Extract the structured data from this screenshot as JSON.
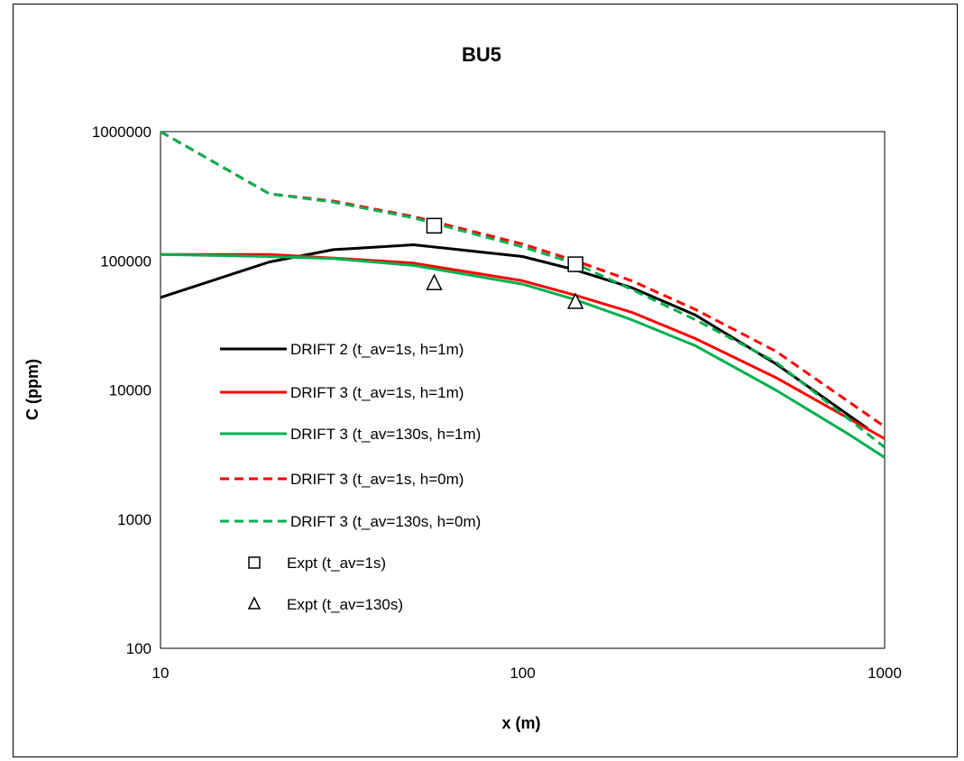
{
  "chart_data": {
    "type": "line",
    "title": "BU5",
    "xlabel": "x (m)",
    "ylabel": "C (ppm)",
    "x_scale": "log",
    "y_scale": "log",
    "xlim": [
      10,
      1000
    ],
    "ylim": [
      100,
      1000000
    ],
    "x_ticks": [
      "10",
      "100",
      "1000"
    ],
    "y_ticks": [
      "100",
      "1000",
      "10000",
      "100000",
      "1000000"
    ],
    "grid": false,
    "legend_position": "left-inside",
    "series": [
      {
        "name": "DRIFT 2 (t_av=1s, h=1m)",
        "color": "#000000",
        "style": "solid",
        "points": [
          [
            10,
            52000
          ],
          [
            20,
            98000
          ],
          [
            30,
            122000
          ],
          [
            50,
            133000
          ],
          [
            100,
            108000
          ],
          [
            140,
            85000
          ],
          [
            200,
            62000
          ],
          [
            300,
            38000
          ],
          [
            500,
            16000
          ],
          [
            900,
            5000
          ]
        ]
      },
      {
        "name": "DRIFT 3 (t_av=1s, h=1m)",
        "color": "#ff0000",
        "style": "solid",
        "points": [
          [
            10,
            112000
          ],
          [
            20,
            112000
          ],
          [
            30,
            105000
          ],
          [
            50,
            96000
          ],
          [
            100,
            70000
          ],
          [
            140,
            54000
          ],
          [
            200,
            40000
          ],
          [
            300,
            25000
          ],
          [
            500,
            12500
          ],
          [
            1000,
            4200
          ]
        ]
      },
      {
        "name": "DRIFT 3 (t_av=130s, h=1m)",
        "color": "#00b050",
        "style": "solid",
        "points": [
          [
            10,
            112000
          ],
          [
            20,
            108000
          ],
          [
            30,
            104000
          ],
          [
            50,
            92000
          ],
          [
            100,
            66000
          ],
          [
            140,
            50000
          ],
          [
            200,
            35000
          ],
          [
            300,
            22000
          ],
          [
            500,
            10000
          ],
          [
            800,
            4500
          ],
          [
            1000,
            3000
          ]
        ]
      },
      {
        "name": "DRIFT 3 (t_av=1s, h=0m)",
        "color": "#ff0000",
        "style": "dashed",
        "points": [
          [
            10,
            1000000
          ],
          [
            20,
            330000
          ],
          [
            30,
            290000
          ],
          [
            50,
            220000
          ],
          [
            100,
            135000
          ],
          [
            140,
            100000
          ],
          [
            200,
            70000
          ],
          [
            300,
            42000
          ],
          [
            500,
            20000
          ],
          [
            1000,
            5200
          ]
        ]
      },
      {
        "name": "DRIFT 3 (t_av=130s, h=0m)",
        "color": "#00b050",
        "style": "dashed",
        "points": [
          [
            10,
            1000000
          ],
          [
            20,
            330000
          ],
          [
            30,
            285000
          ],
          [
            50,
            215000
          ],
          [
            100,
            128000
          ],
          [
            140,
            95000
          ],
          [
            200,
            60000
          ],
          [
            300,
            35000
          ],
          [
            500,
            16500
          ],
          [
            1000,
            3600
          ]
        ]
      },
      {
        "name": "Expt (t_av=1s)",
        "color": "#000000",
        "style": "marker-square",
        "points": [
          [
            57,
            187000
          ],
          [
            140,
            94000
          ]
        ]
      },
      {
        "name": "Expt (t_av=130s)",
        "color": "#000000",
        "style": "marker-triangle",
        "points": [
          [
            57,
            67000
          ],
          [
            140,
            48000
          ]
        ]
      }
    ]
  }
}
